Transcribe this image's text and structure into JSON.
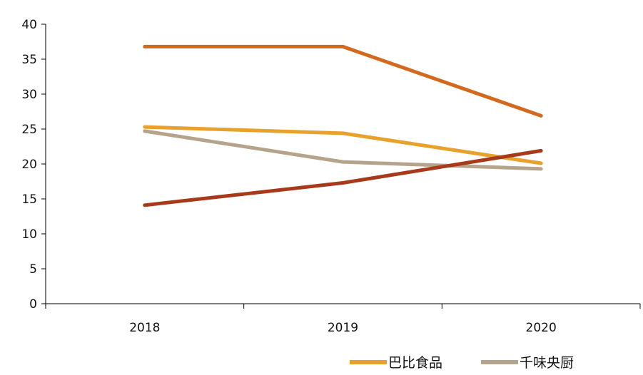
{
  "chart_data": {
    "type": "line",
    "title": "",
    "xlabel": "",
    "ylabel": "",
    "categories": [
      "2018",
      "2019",
      "2020"
    ],
    "ylim": [
      0,
      40
    ],
    "yticks": [
      "0",
      "5",
      "10",
      "15",
      "20",
      "25",
      "30",
      "35",
      "40"
    ],
    "grid": false,
    "legend_position": "bottom-right",
    "series": [
      {
        "name": "",
        "color": "#d2691e",
        "values": [
          36.8,
          36.8,
          26.9
        ],
        "in_legend": false
      },
      {
        "name": "巴比食品",
        "color": "#e8a12d",
        "values": [
          25.3,
          24.4,
          20.1
        ],
        "in_legend": true
      },
      {
        "name": "千味央厨",
        "color": "#b5a48b",
        "values": [
          24.7,
          20.3,
          19.3
        ],
        "in_legend": true
      },
      {
        "name": "",
        "color": "#a83a1c",
        "values": [
          14.1,
          17.3,
          21.9
        ],
        "in_legend": false
      }
    ]
  }
}
